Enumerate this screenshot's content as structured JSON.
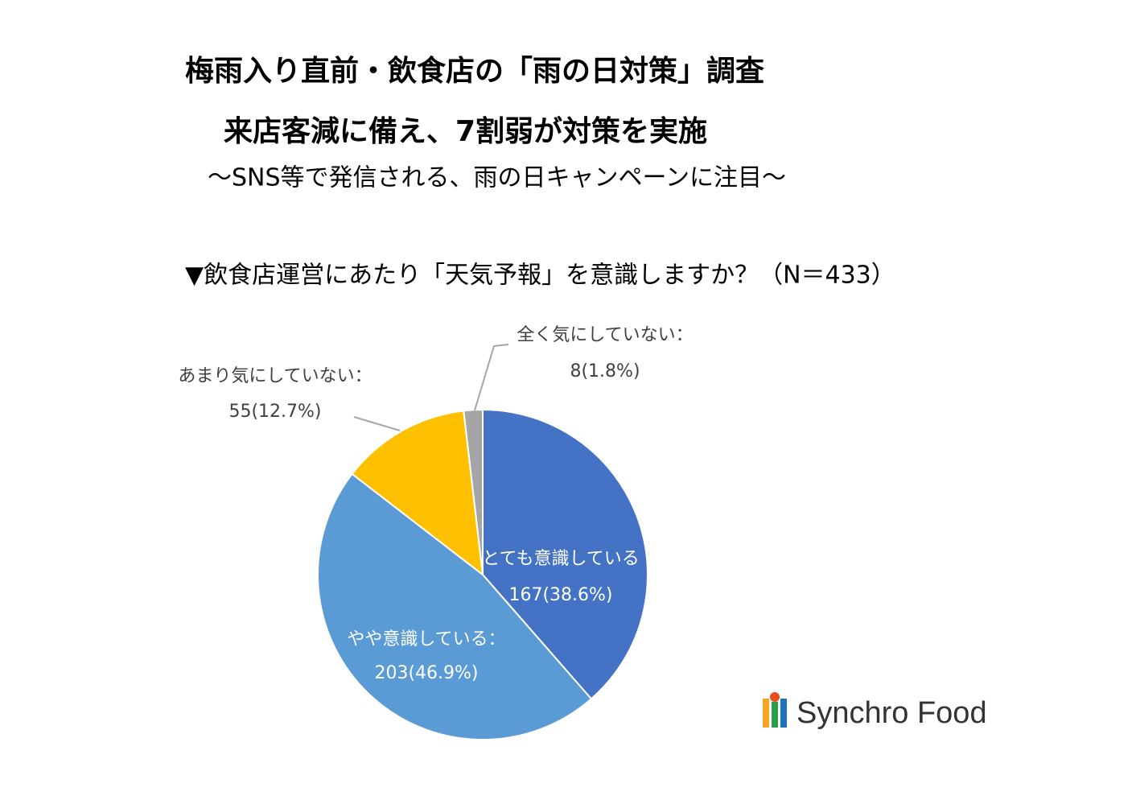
{
  "chart_data": {
    "type": "pie",
    "title": "梅雨入り直前・飲食店の「雨の日対策」調査",
    "subtitle": "来店客減に備え、7割弱が対策を実施",
    "subtitle2": "～SNS等で発信される、雨の日キャンペーンに注目～",
    "question": "▼飲食店運営にあたり「天気予報」を意識しますか？（N＝433）",
    "categories": [
      "とても意識している",
      "やや意識している：",
      "あまり気にしていない：",
      "全く気にしていない："
    ],
    "values": [
      167,
      203,
      55,
      8
    ],
    "value_labels": [
      "167(38.6%)",
      "203(46.9%)",
      "55(12.7%)",
      "8(1.8%)"
    ],
    "colors": [
      "#4472c4",
      "#5b9bd5",
      "#ffc000",
      "#a5a5a5"
    ],
    "start_angle": 0,
    "direction": "clockwise"
  },
  "logo": "Synchro Food"
}
